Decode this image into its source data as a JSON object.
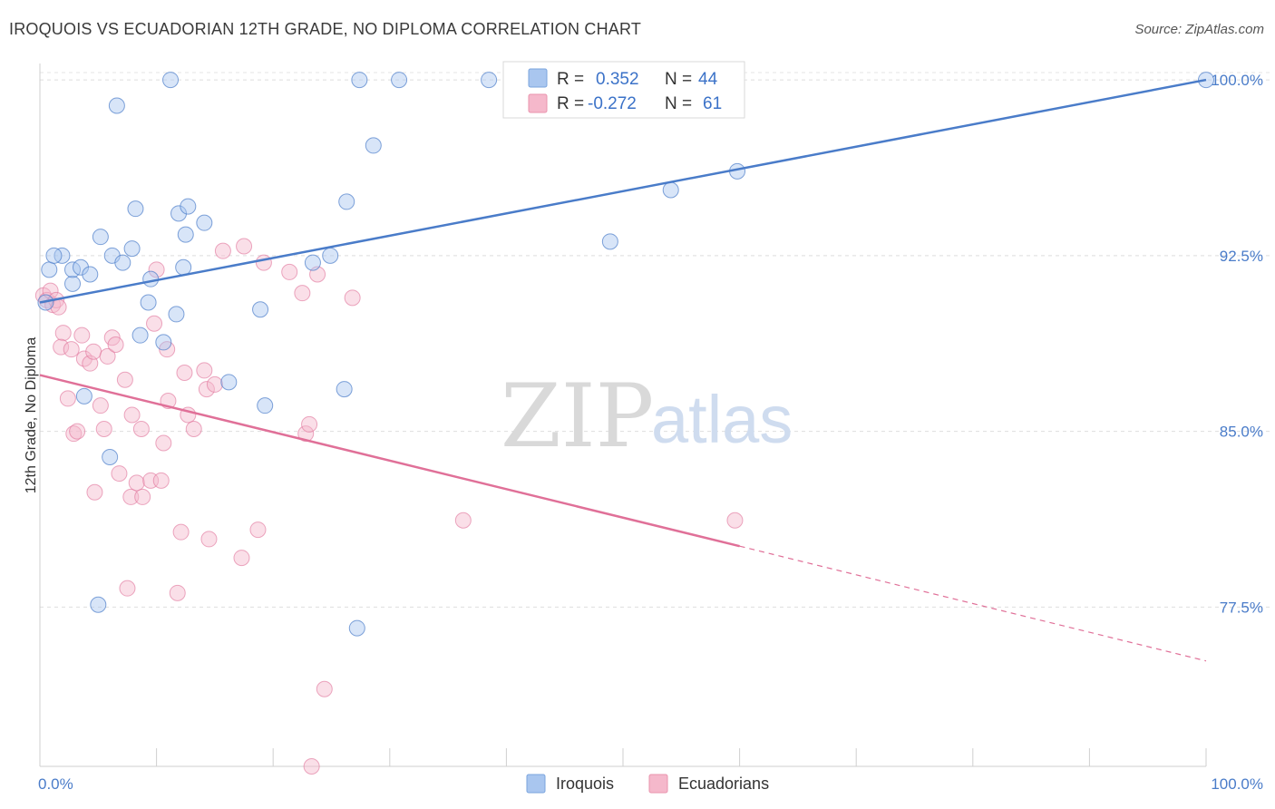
{
  "header": {
    "title": "IROQUOIS VS ECUADORIAN 12TH GRADE, NO DIPLOMA CORRELATION CHART",
    "source": "Source: ZipAtlas.com"
  },
  "watermark": {
    "zip": "ZIP",
    "atlas": "atlas"
  },
  "legend": {
    "rows": [
      {
        "r_label": "R =",
        "r_value": "0.352",
        "n_label": "N =",
        "n_value": "44",
        "color": "#a9c6ef"
      },
      {
        "r_label": "R =",
        "r_value": "-0.272",
        "n_label": "N =",
        "n_value": "61",
        "color": "#f5b8cb"
      }
    ]
  },
  "bottom_legend": {
    "items": [
      "Iroquois",
      "Ecuadorians"
    ]
  },
  "chart_data": {
    "type": "scatter",
    "title": "IROQUOIS VS ECUADORIAN 12TH GRADE, NO DIPLOMA CORRELATION CHART",
    "ylabel": "12th Grade, No Diploma",
    "xlabel": "",
    "xlim": [
      0,
      100
    ],
    "ylim": [
      70.7,
      100.7
    ],
    "x_tick_labels": [
      "0.0%",
      "100.0%"
    ],
    "y_ticks": [
      77.5,
      85.0,
      92.5,
      100.0
    ],
    "y_tick_labels": [
      "77.5%",
      "85.0%",
      "92.5%",
      "100.0%"
    ],
    "grid": true,
    "legend_position": "top-center",
    "colors": {
      "iroquois": "#4a7cc9",
      "ecuadorians": "#e07098"
    },
    "series": [
      {
        "name": "Iroquois",
        "color": "#a9c6ef",
        "stroke": "#4a7cc9",
        "trend": {
          "x": [
            0,
            100
          ],
          "y": [
            90.5,
            100.0
          ]
        },
        "points": [
          [
            0.8,
            91.9
          ],
          [
            1.9,
            92.5
          ],
          [
            1.2,
            92.5
          ],
          [
            2.8,
            91.3
          ],
          [
            2.8,
            91.9
          ],
          [
            3.5,
            92.0
          ],
          [
            4.3,
            91.7
          ],
          [
            3.8,
            86.5
          ],
          [
            5.2,
            93.3
          ],
          [
            6.2,
            92.5
          ],
          [
            7.1,
            92.2
          ],
          [
            7.9,
            92.8
          ],
          [
            8.2,
            94.5
          ],
          [
            9.3,
            90.5
          ],
          [
            9.5,
            91.5
          ],
          [
            8.6,
            89.1
          ],
          [
            10.6,
            88.8
          ],
          [
            11.7,
            90.0
          ],
          [
            12.3,
            92.0
          ],
          [
            11.9,
            94.3
          ],
          [
            12.7,
            94.6
          ],
          [
            12.5,
            93.4
          ],
          [
            14.1,
            93.9
          ],
          [
            11.2,
            100.0
          ],
          [
            6.6,
            98.9
          ],
          [
            16.2,
            87.1
          ],
          [
            18.9,
            90.2
          ],
          [
            19.3,
            86.1
          ],
          [
            23.4,
            92.2
          ],
          [
            24.9,
            92.5
          ],
          [
            26.1,
            86.8
          ],
          [
            26.3,
            94.8
          ],
          [
            27.4,
            100.0
          ],
          [
            28.6,
            97.2
          ],
          [
            30.8,
            100.0
          ],
          [
            38.5,
            100.0
          ],
          [
            48.9,
            93.1
          ],
          [
            54.1,
            95.3
          ],
          [
            59.8,
            96.1
          ],
          [
            100.0,
            100.0
          ],
          [
            6.0,
            83.9
          ],
          [
            5.0,
            77.6
          ],
          [
            27.2,
            76.6
          ],
          [
            0.5,
            90.5
          ]
        ]
      },
      {
        "name": "Ecuadorians",
        "color": "#f5b8cb",
        "stroke": "#e07098",
        "trend": {
          "x": [
            0,
            60
          ],
          "y": [
            87.4,
            80.1
          ]
        },
        "trend_dashed": {
          "x": [
            60,
            100
          ],
          "y": [
            80.1,
            75.2
          ]
        },
        "points": [
          [
            0.3,
            90.8
          ],
          [
            0.6,
            90.6
          ],
          [
            0.9,
            91.0
          ],
          [
            1.1,
            90.4
          ],
          [
            1.4,
            90.6
          ],
          [
            1.6,
            90.3
          ],
          [
            2.0,
            89.2
          ],
          [
            1.8,
            88.6
          ],
          [
            2.4,
            86.4
          ],
          [
            2.9,
            84.9
          ],
          [
            3.2,
            85.0
          ],
          [
            2.7,
            88.5
          ],
          [
            3.6,
            89.1
          ],
          [
            3.8,
            88.1
          ],
          [
            4.3,
            87.9
          ],
          [
            4.6,
            88.4
          ],
          [
            5.2,
            86.1
          ],
          [
            5.5,
            85.1
          ],
          [
            5.8,
            88.2
          ],
          [
            6.2,
            89.0
          ],
          [
            6.5,
            88.7
          ],
          [
            4.7,
            82.4
          ],
          [
            6.8,
            83.2
          ],
          [
            7.3,
            87.2
          ],
          [
            7.8,
            82.2
          ],
          [
            7.9,
            85.7
          ],
          [
            8.3,
            82.8
          ],
          [
            8.7,
            85.1
          ],
          [
            8.8,
            82.2
          ],
          [
            9.5,
            82.9
          ],
          [
            9.8,
            89.6
          ],
          [
            10.0,
            91.9
          ],
          [
            10.4,
            82.9
          ],
          [
            10.6,
            84.5
          ],
          [
            10.9,
            88.5
          ],
          [
            11.0,
            86.3
          ],
          [
            12.1,
            80.7
          ],
          [
            12.4,
            87.5
          ],
          [
            12.7,
            85.7
          ],
          [
            13.2,
            85.1
          ],
          [
            14.1,
            87.6
          ],
          [
            14.3,
            86.8
          ],
          [
            14.5,
            80.4
          ],
          [
            15.0,
            87.0
          ],
          [
            15.7,
            92.7
          ],
          [
            17.3,
            79.6
          ],
          [
            17.5,
            92.9
          ],
          [
            18.7,
            80.8
          ],
          [
            19.2,
            92.2
          ],
          [
            21.4,
            91.8
          ],
          [
            22.5,
            90.9
          ],
          [
            22.8,
            84.9
          ],
          [
            23.1,
            85.3
          ],
          [
            23.8,
            91.7
          ],
          [
            24.4,
            74.0
          ],
          [
            26.8,
            90.7
          ],
          [
            36.3,
            81.2
          ],
          [
            59.6,
            81.2
          ],
          [
            7.5,
            78.3
          ],
          [
            11.8,
            78.1
          ],
          [
            23.3,
            70.7
          ]
        ]
      }
    ]
  }
}
